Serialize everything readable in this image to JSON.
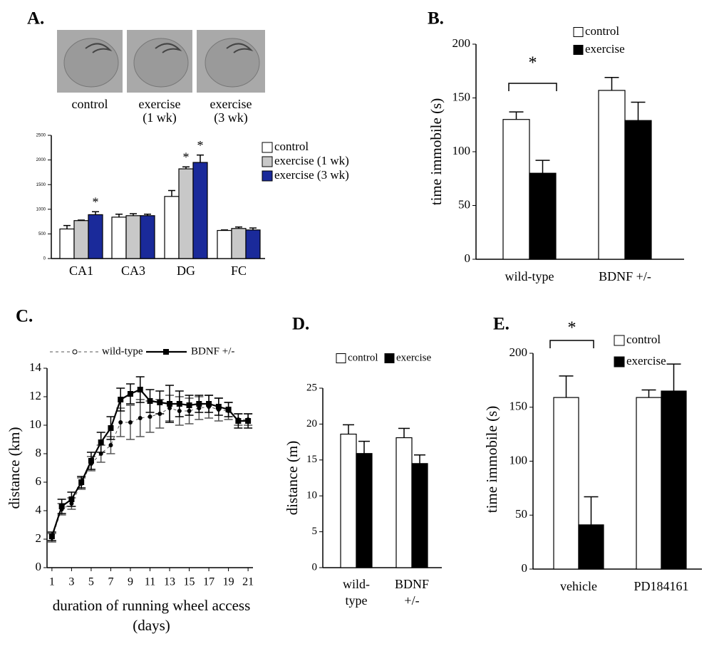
{
  "chart_data": [
    {
      "type": "bar",
      "label": "A.",
      "image_captions": [
        [
          "control"
        ],
        [
          "exercise",
          "(1 wk)"
        ],
        [
          "exercise",
          "(3 wk)"
        ]
      ],
      "categories": [
        "CA1",
        "CA3",
        "DG",
        "FC"
      ],
      "series": [
        {
          "name": "control",
          "color": "#ffffff",
          "values": [
            600,
            840,
            1260,
            570
          ],
          "errors": [
            70,
            60,
            120,
            10
          ]
        },
        {
          "name": "exercise (1 wk)",
          "color": "#c8c8c8",
          "values": [
            770,
            870,
            1820,
            610
          ],
          "errors": [
            10,
            40,
            40,
            30
          ]
        },
        {
          "name": "exercise (3 wk)",
          "color": "#1a2a9a",
          "values": [
            890,
            870,
            1950,
            580
          ],
          "errors": [
            60,
            30,
            150,
            40
          ]
        }
      ],
      "ylim": [
        0,
        2500
      ],
      "yticks": [
        0,
        500,
        1000,
        1500,
        2000,
        2500
      ],
      "annotations": [
        "*",
        "*",
        "*"
      ]
    },
    {
      "type": "bar",
      "label": "B.",
      "ylabel": "time immobile (s)",
      "categories": [
        "wild-type",
        "BDNF +/-"
      ],
      "series": [
        {
          "name": "control",
          "color": "#ffffff",
          "values": [
            130,
            157
          ],
          "errors": [
            7,
            12
          ]
        },
        {
          "name": "exercise",
          "color": "#000000",
          "values": [
            80,
            129
          ],
          "errors": [
            12,
            17
          ]
        }
      ],
      "ylim": [
        0,
        200
      ],
      "yticks": [
        0,
        50,
        100,
        150,
        200
      ],
      "annotations": [
        "*"
      ]
    },
    {
      "type": "line",
      "label": "C.",
      "ylabel": "distance (km)",
      "xlabel": [
        "duration of running wheel access",
        "(days)"
      ],
      "x": [
        1,
        2,
        3,
        4,
        5,
        6,
        7,
        8,
        9,
        10,
        11,
        12,
        13,
        14,
        15,
        16,
        17,
        18,
        19,
        20,
        21
      ],
      "series": [
        {
          "name": "wild-type",
          "color": "#555555",
          "values": [
            2.1,
            4.1,
            4.5,
            5.9,
            7.3,
            8.0,
            8.6,
            10.2,
            10.2,
            10.5,
            10.6,
            10.8,
            11.2,
            11.0,
            11.0,
            11.2,
            11.3,
            11.1,
            11.0,
            10.4,
            10.4
          ],
          "errors": [
            0.3,
            0.4,
            0.4,
            0.4,
            0.5,
            0.6,
            0.6,
            1.0,
            1.2,
            1.3,
            1.1,
            1.0,
            0.9,
            1.0,
            0.9,
            0.8,
            0.8,
            0.8,
            0.6,
            0.4,
            0.4
          ]
        },
        {
          "name": "BDNF +/-",
          "color": "#000000",
          "values": [
            2.2,
            4.3,
            4.8,
            6.0,
            7.5,
            8.8,
            9.8,
            11.8,
            12.2,
            12.5,
            11.7,
            11.6,
            11.5,
            11.5,
            11.4,
            11.5,
            11.5,
            11.3,
            11.1,
            10.3,
            10.3
          ],
          "errors": [
            0.3,
            0.5,
            0.5,
            0.4,
            0.6,
            0.7,
            0.8,
            0.8,
            0.7,
            0.9,
            0.8,
            0.8,
            1.3,
            0.9,
            0.7,
            0.6,
            0.6,
            0.6,
            0.5,
            0.5,
            0.5
          ]
        }
      ],
      "xlim": [
        0.5,
        21.5
      ],
      "xticks": [
        1,
        3,
        5,
        7,
        9,
        11,
        13,
        15,
        17,
        19,
        21
      ],
      "ylim": [
        0,
        14
      ],
      "yticks": [
        0,
        2,
        4,
        6,
        8,
        10,
        12,
        14
      ]
    },
    {
      "type": "bar",
      "label": "D.",
      "ylabel": "distance (m)",
      "categories": [
        [
          "wild-",
          "type"
        ],
        [
          "BDNF",
          "+/-"
        ]
      ],
      "series": [
        {
          "name": "control",
          "color": "#ffffff",
          "values": [
            18.6,
            18.1
          ],
          "errors": [
            1.3,
            1.3
          ]
        },
        {
          "name": "exercise",
          "color": "#000000",
          "values": [
            15.9,
            14.5
          ],
          "errors": [
            1.7,
            1.2
          ]
        }
      ],
      "ylim": [
        0,
        25
      ],
      "yticks": [
        0,
        5,
        10,
        15,
        20,
        25
      ]
    },
    {
      "type": "bar",
      "label": "E.",
      "ylabel": "time immobile (s)",
      "categories": [
        "vehicle",
        "PD184161"
      ],
      "series": [
        {
          "name": "control",
          "color": "#ffffff",
          "values": [
            159,
            159
          ],
          "errors": [
            20,
            7
          ]
        },
        {
          "name": "exercise",
          "color": "#000000",
          "values": [
            41,
            165
          ],
          "errors": [
            26,
            25
          ]
        }
      ],
      "ylim": [
        0,
        200
      ],
      "yticks": [
        0,
        50,
        100,
        150,
        200
      ],
      "annotations": [
        "*"
      ]
    }
  ]
}
